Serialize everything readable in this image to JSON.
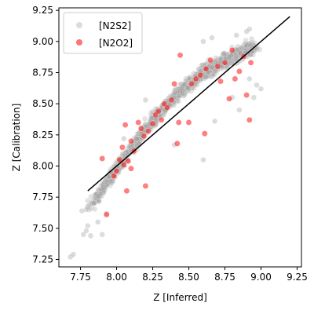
{
  "chart_data": {
    "type": "scatter",
    "title": "",
    "xlabel": "Z [Inferred]",
    "ylabel": "Z [Calibration]",
    "xlim": [
      7.6,
      9.28
    ],
    "ylim": [
      7.19,
      9.27
    ],
    "xticks": [
      7.75,
      8.0,
      8.25,
      8.5,
      8.75,
      9.0,
      9.25
    ],
    "xtick_labels": [
      "7.75",
      "8.00",
      "8.25",
      "8.50",
      "8.75",
      "9.00",
      "9.25"
    ],
    "yticks": [
      7.25,
      7.5,
      7.75,
      8.0,
      8.25,
      8.5,
      8.75,
      9.0,
      9.25
    ],
    "ytick_labels": [
      "7.25",
      "7.50",
      "7.75",
      "8.00",
      "8.25",
      "8.50",
      "8.75",
      "9.00",
      "9.25"
    ],
    "grid": false,
    "legend_position": "top-left",
    "series": [
      {
        "name": "[N2S2]",
        "color": "#9a9a9a",
        "dense_trend": {
          "x": [
            7.82,
            8.0,
            8.2,
            8.4,
            8.6,
            8.8,
            8.95
          ],
          "y": [
            7.68,
            7.98,
            8.3,
            8.56,
            8.75,
            8.88,
            8.95
          ],
          "count": 1400,
          "spread": 0.08
        },
        "points": [
          {
            "x": 7.68,
            "y": 7.27
          },
          {
            "x": 7.7,
            "y": 7.29
          },
          {
            "x": 7.77,
            "y": 7.45
          },
          {
            "x": 7.79,
            "y": 7.48
          },
          {
            "x": 7.82,
            "y": 7.44
          },
          {
            "x": 7.8,
            "y": 7.52
          },
          {
            "x": 7.76,
            "y": 7.64
          },
          {
            "x": 7.79,
            "y": 7.65
          },
          {
            "x": 7.9,
            "y": 7.45
          },
          {
            "x": 7.87,
            "y": 7.55
          },
          {
            "x": 7.93,
            "y": 7.62
          },
          {
            "x": 8.05,
            "y": 8.22
          },
          {
            "x": 8.2,
            "y": 8.53
          },
          {
            "x": 8.4,
            "y": 8.17
          },
          {
            "x": 8.6,
            "y": 8.05
          },
          {
            "x": 8.68,
            "y": 8.36
          },
          {
            "x": 8.8,
            "y": 8.55
          },
          {
            "x": 8.85,
            "y": 8.45
          },
          {
            "x": 8.92,
            "y": 8.7
          },
          {
            "x": 8.95,
            "y": 8.55
          },
          {
            "x": 8.97,
            "y": 8.65
          },
          {
            "x": 8.9,
            "y": 9.08
          },
          {
            "x": 8.92,
            "y": 9.1
          },
          {
            "x": 8.83,
            "y": 9.05
          },
          {
            "x": 8.66,
            "y": 9.03
          },
          {
            "x": 8.6,
            "y": 9.0
          },
          {
            "x": 9.0,
            "y": 8.62
          }
        ]
      },
      {
        "name": "[N2O2]",
        "color": "#ff0000",
        "points": [
          {
            "x": 7.9,
            "y": 8.06
          },
          {
            "x": 7.93,
            "y": 7.61
          },
          {
            "x": 7.98,
            "y": 7.92
          },
          {
            "x": 8.0,
            "y": 7.96
          },
          {
            "x": 8.02,
            "y": 8.05
          },
          {
            "x": 8.04,
            "y": 8.15
          },
          {
            "x": 8.05,
            "y": 8.01
          },
          {
            "x": 8.06,
            "y": 8.33
          },
          {
            "x": 8.07,
            "y": 7.8
          },
          {
            "x": 8.08,
            "y": 8.04
          },
          {
            "x": 8.1,
            "y": 8.2
          },
          {
            "x": 8.1,
            "y": 7.98
          },
          {
            "x": 8.12,
            "y": 8.12
          },
          {
            "x": 8.15,
            "y": 8.35
          },
          {
            "x": 8.17,
            "y": 8.3
          },
          {
            "x": 8.19,
            "y": 8.24
          },
          {
            "x": 8.2,
            "y": 7.84
          },
          {
            "x": 8.22,
            "y": 8.28
          },
          {
            "x": 8.25,
            "y": 8.34
          },
          {
            "x": 8.27,
            "y": 8.41
          },
          {
            "x": 8.29,
            "y": 8.44
          },
          {
            "x": 8.31,
            "y": 8.37
          },
          {
            "x": 8.33,
            "y": 8.5
          },
          {
            "x": 8.35,
            "y": 8.47
          },
          {
            "x": 8.38,
            "y": 8.53
          },
          {
            "x": 8.4,
            "y": 8.66
          },
          {
            "x": 8.42,
            "y": 8.18
          },
          {
            "x": 8.43,
            "y": 8.35
          },
          {
            "x": 8.44,
            "y": 8.89
          },
          {
            "x": 8.5,
            "y": 8.35
          },
          {
            "x": 8.52,
            "y": 8.66
          },
          {
            "x": 8.55,
            "y": 8.7
          },
          {
            "x": 8.58,
            "y": 8.73
          },
          {
            "x": 8.61,
            "y": 8.26
          },
          {
            "x": 8.62,
            "y": 8.78
          },
          {
            "x": 8.65,
            "y": 8.85
          },
          {
            "x": 8.7,
            "y": 8.8
          },
          {
            "x": 8.72,
            "y": 8.68
          },
          {
            "x": 8.75,
            "y": 8.83
          },
          {
            "x": 8.78,
            "y": 8.54
          },
          {
            "x": 8.8,
            "y": 8.93
          },
          {
            "x": 8.82,
            "y": 8.7
          },
          {
            "x": 8.85,
            "y": 8.76
          },
          {
            "x": 8.88,
            "y": 8.88
          },
          {
            "x": 8.9,
            "y": 8.57
          },
          {
            "x": 8.92,
            "y": 8.37
          },
          {
            "x": 8.93,
            "y": 8.83
          }
        ]
      }
    ],
    "reference_line": {
      "color": "#000000",
      "x": [
        7.8,
        9.2
      ],
      "y": [
        7.8,
        9.2
      ]
    }
  }
}
